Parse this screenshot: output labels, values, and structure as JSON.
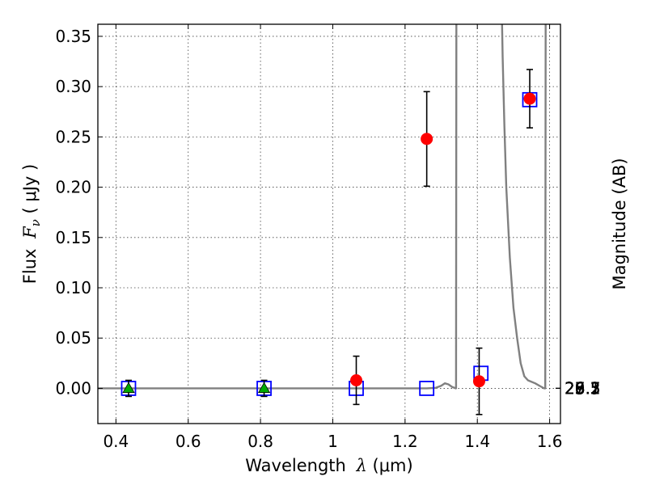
{
  "chart_data": {
    "type": "scatter",
    "x_axis": {
      "label_prefix": "Wavelength ",
      "label_symbol": "λ",
      "label_suffix": " (μm)",
      "range": [
        0.35,
        1.63
      ],
      "ticks": [
        {
          "value": 0.4,
          "label": "0.4"
        },
        {
          "value": 0.6,
          "label": "0.6"
        },
        {
          "value": 0.8,
          "label": "0.8"
        },
        {
          "value": 1.0,
          "label": "1"
        },
        {
          "value": 1.2,
          "label": "1.2"
        },
        {
          "value": 1.4,
          "label": "1.4"
        },
        {
          "value": 1.6,
          "label": "1.6"
        }
      ]
    },
    "y_axis": {
      "label_prefix": "Flux ",
      "label_symbol": "F",
      "label_subscript": "ν",
      "label_suffix": " ( μJy )",
      "range": [
        -0.035,
        0.362
      ],
      "ticks": [
        {
          "value": 0.0,
          "label": "0.00"
        },
        {
          "value": 0.05,
          "label": "0.05"
        },
        {
          "value": 0.1,
          "label": "0.10"
        },
        {
          "value": 0.15,
          "label": "0.15"
        },
        {
          "value": 0.2,
          "label": "0.20"
        },
        {
          "value": 0.25,
          "label": "0.25"
        },
        {
          "value": 0.3,
          "label": "0.30"
        },
        {
          "value": 0.35,
          "label": "0.35"
        }
      ]
    },
    "y2_axis": {
      "label": "Magnitude (AB)",
      "zero_point_ujy": 3630.78,
      "ticks": [
        {
          "value": 25.1,
          "label": "25.1"
        },
        {
          "value": 25.3,
          "label": "25.3"
        },
        {
          "value": 25.5,
          "label": "25.5"
        },
        {
          "value": 25.7,
          "label": "25.7"
        },
        {
          "value": 26.0,
          "label": "26"
        },
        {
          "value": 26.2,
          "label": "26.2"
        },
        {
          "value": 26.5,
          "label": "26.5"
        },
        {
          "value": 27.0,
          "label": "27"
        },
        {
          "value": 27.5,
          "label": "27.5"
        },
        {
          "value": 28.0,
          "label": "28"
        },
        {
          "value": 29.0,
          "label": "29"
        }
      ]
    },
    "grid": true,
    "series": [
      {
        "marker": "circle",
        "color": "#ff0000",
        "points": [
          {
            "x": 1.065,
            "y": 0.008,
            "err": 0.024
          },
          {
            "x": 1.26,
            "y": 0.248,
            "err": 0.047
          },
          {
            "x": 1.405,
            "y": 0.007,
            "err": 0.033
          },
          {
            "x": 1.545,
            "y": 0.288,
            "err": 0.029
          }
        ]
      },
      {
        "marker": "triangle",
        "color": "#00aa00",
        "points": [
          {
            "x": 0.435,
            "y": 0.0,
            "err": 0.008
          },
          {
            "x": 0.81,
            "y": 0.0,
            "err": 0.008
          }
        ]
      },
      {
        "marker": "square-open",
        "color": "#0000ff",
        "points": [
          {
            "x": 0.435,
            "y": 0.0
          },
          {
            "x": 0.81,
            "y": 0.0
          },
          {
            "x": 1.065,
            "y": 0.0
          },
          {
            "x": 1.26,
            "y": 0.0
          },
          {
            "x": 1.41,
            "y": 0.015
          },
          {
            "x": 1.545,
            "y": 0.287
          }
        ]
      }
    ],
    "model_curve": {
      "color": "#808080",
      "points": [
        [
          0.35,
          0.0
        ],
        [
          1.26,
          0.0
        ],
        [
          1.285,
          0.0005
        ],
        [
          1.3,
          0.0025
        ],
        [
          1.31,
          0.005
        ],
        [
          1.32,
          0.004
        ],
        [
          1.33,
          0.0015
        ],
        [
          1.34,
          0.0
        ],
        [
          1.341,
          0.0
        ],
        [
          1.342,
          0.37
        ],
        [
          1.468,
          0.37
        ],
        [
          1.47,
          0.33
        ],
        [
          1.475,
          0.26
        ],
        [
          1.48,
          0.2
        ],
        [
          1.49,
          0.13
        ],
        [
          1.5,
          0.08
        ],
        [
          1.51,
          0.05
        ],
        [
          1.52,
          0.025
        ],
        [
          1.53,
          0.012
        ],
        [
          1.54,
          0.008
        ],
        [
          1.56,
          0.005
        ],
        [
          1.575,
          0.002
        ],
        [
          1.585,
          0.0
        ],
        [
          1.588,
          0.0
        ],
        [
          1.589,
          0.37
        ]
      ]
    }
  }
}
